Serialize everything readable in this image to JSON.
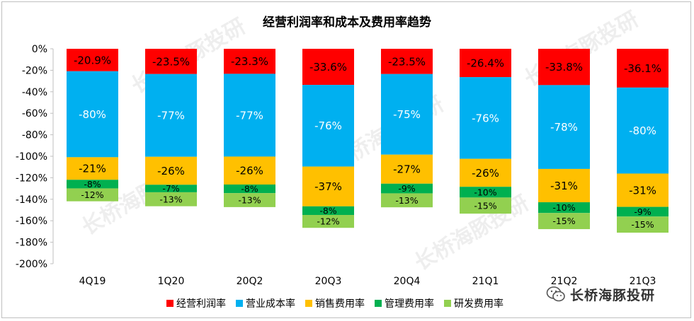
{
  "chart_data": {
    "type": "bar",
    "stacked": true,
    "title": "经营利润率和成本及费用率趋势",
    "categories": [
      "4Q19",
      "1Q20",
      "20Q2",
      "20Q3",
      "20Q4",
      "21Q1",
      "21Q2",
      "21Q3"
    ],
    "ylim": [
      -200,
      0
    ],
    "yticks": [
      0,
      -20,
      -40,
      -60,
      -80,
      -100,
      -120,
      -140,
      -160,
      -180,
      -200
    ],
    "ytick_labels": [
      "0%",
      "-20%",
      "-40%",
      "-60%",
      "-80%",
      "-100%",
      "-120%",
      "-140%",
      "-160%",
      "-180%",
      "-200%"
    ],
    "legend_position": "bottom",
    "series": [
      {
        "name": "经营利润率",
        "color": "#ff0000",
        "values": [
          -20.9,
          -23.5,
          -23.3,
          -33.6,
          -23.5,
          -26.4,
          -33.8,
          -36.1
        ],
        "labels": [
          "-20.9%",
          "-23.5%",
          "-23.3%",
          "-33.6%",
          "-23.5%",
          "-26.4%",
          "-33.8%",
          "-36.1%"
        ]
      },
      {
        "name": "营业成本率",
        "color": "#00b0f0",
        "values": [
          -80,
          -77,
          -77,
          -76,
          -75,
          -76,
          -78,
          -80
        ],
        "labels": [
          "-80%",
          "-77%",
          "-77%",
          "-76%",
          "-75%",
          "-76%",
          "-78%",
          "-80%"
        ]
      },
      {
        "name": "销售费用率",
        "color": "#ffc000",
        "values": [
          -21,
          -26,
          -26,
          -37,
          -27,
          -26,
          -31,
          -31
        ],
        "labels": [
          "-21%",
          "-26%",
          "-26%",
          "-37%",
          "-27%",
          "-26%",
          "-31%",
          "-31%"
        ]
      },
      {
        "name": "管理费用率",
        "color": "#00b050",
        "values": [
          -8,
          -7,
          -8,
          -8,
          -9,
          -10,
          -10,
          -9
        ],
        "labels": [
          "-8%",
          "-7%",
          "-8%",
          "-8%",
          "-9%",
          "-10%",
          "-10%",
          "-9%"
        ]
      },
      {
        "name": "研发费用率",
        "color": "#92d050",
        "values": [
          -12,
          -13,
          -13,
          -12,
          -13,
          -15,
          -15,
          -15
        ],
        "labels": [
          "-12%",
          "-13%",
          "-13%",
          "-12%",
          "-13%",
          "-15%",
          "-15%",
          "-15%"
        ]
      }
    ]
  },
  "brand": {
    "name": "长桥海豚投研",
    "icon": "wechat-icon"
  }
}
